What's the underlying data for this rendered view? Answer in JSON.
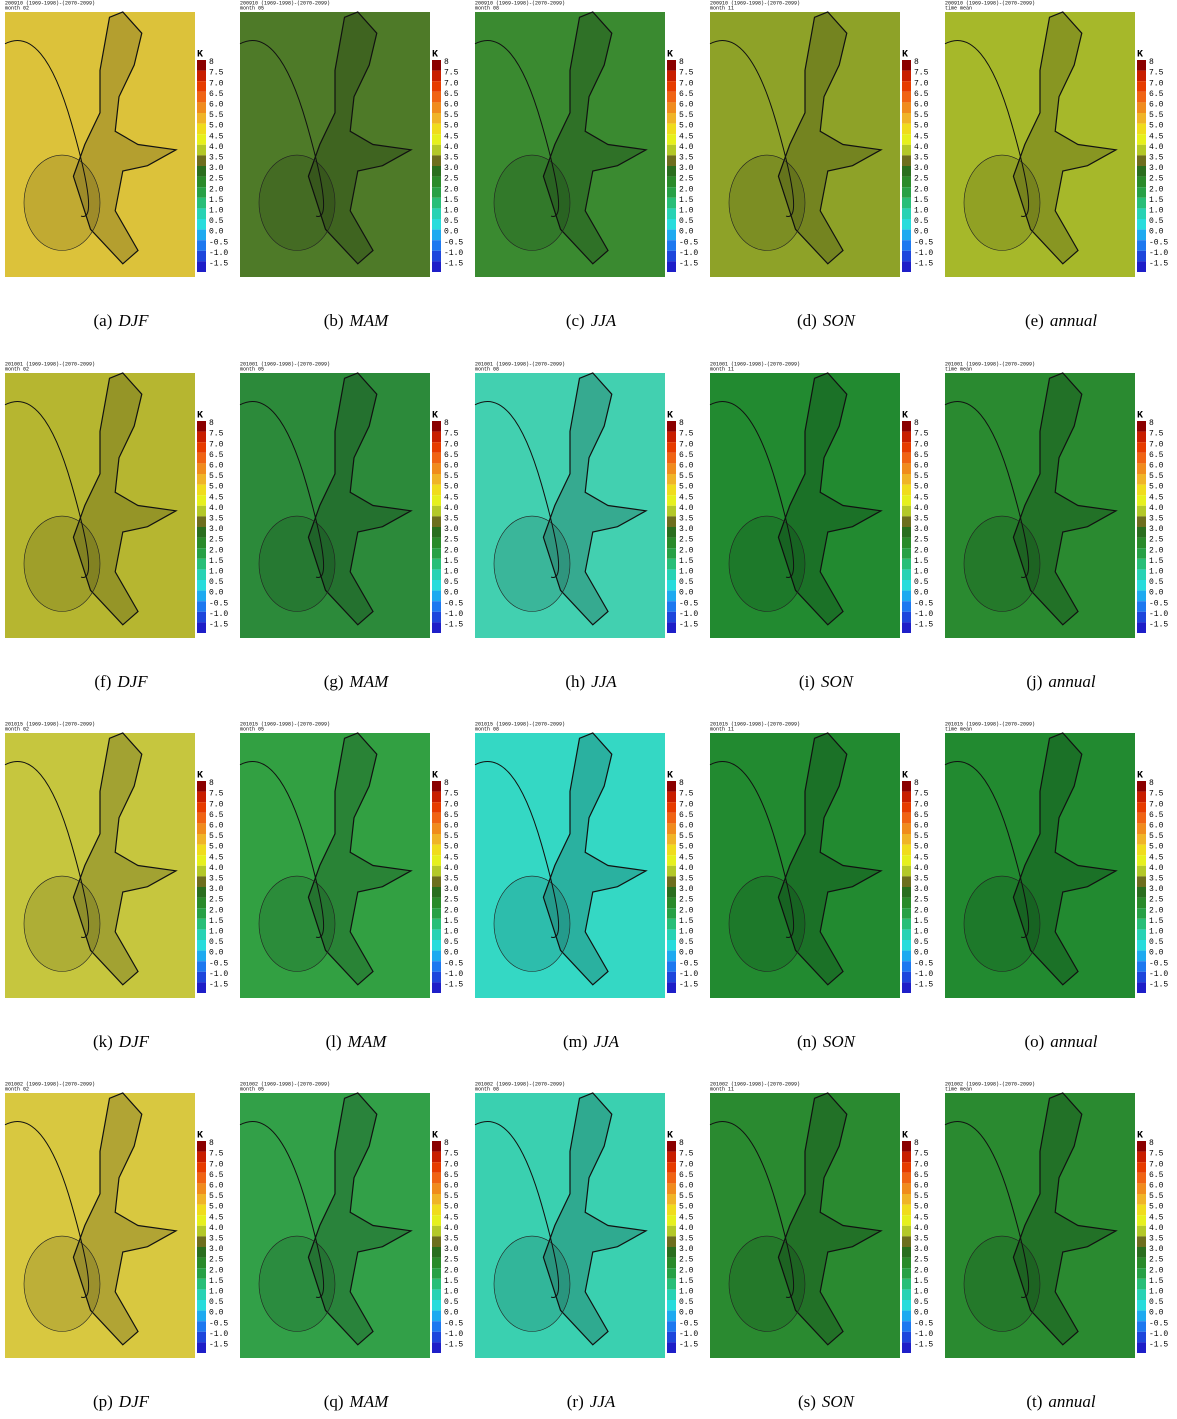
{
  "colorbar": {
    "unit": "K",
    "labels": [
      "8",
      "7.5",
      "7.0",
      "6.5",
      "6.0",
      "5.5",
      "5.0",
      "4.5",
      "4.0",
      "3.5",
      "3.0",
      "2.5",
      "2.0",
      "1.5",
      "1.0",
      "0.5",
      "0.0",
      "-0.5",
      "-1.0",
      "-1.5"
    ],
    "colors": [
      "#8b0000",
      "#c81e00",
      "#e63c00",
      "#f06414",
      "#f08c1e",
      "#f0b428",
      "#f0dc1e",
      "#e6f01e",
      "#b4c828",
      "#6e6e1e",
      "#2a6e1e",
      "#2a8a2a",
      "#28a046",
      "#28be78",
      "#28d2b4",
      "#28dcdc",
      "#1eaaf0",
      "#1e78f0",
      "#1e46dc",
      "#1e1ec8"
    ]
  },
  "panels": [
    {
      "header": "200910 (1969-1998)-(2070-2099)",
      "period": "month 02",
      "letter": "(a)",
      "season": "DJF",
      "fill": "#dcc23a"
    },
    {
      "header": "200910 (1969-1998)-(2070-2099)",
      "period": "month 05",
      "letter": "(b)",
      "season": "MAM",
      "fill": "#4e7a28"
    },
    {
      "header": "200910 (1969-1998)-(2070-2099)",
      "period": "month 08",
      "letter": "(c)",
      "season": "JJA",
      "fill": "#3a8a30"
    },
    {
      "header": "200910 (1969-1998)-(2070-2099)",
      "period": "month 11",
      "letter": "(d)",
      "season": "SON",
      "fill": "#8ea228"
    },
    {
      "header": "200910 (1969-1998)-(2070-2099)",
      "period": "time mean",
      "letter": "(e)",
      "season": "annual",
      "fill": "#a6b82a"
    },
    {
      "header": "201001 (1969-1998)-(2070-2099)",
      "period": "month 02",
      "letter": "(f)",
      "season": "DJF",
      "fill": "#b6b630"
    },
    {
      "header": "201001 (1969-1998)-(2070-2099)",
      "period": "month 05",
      "letter": "(g)",
      "season": "MAM",
      "fill": "#2c8a3a"
    },
    {
      "header": "201001 (1969-1998)-(2070-2099)",
      "period": "month 08",
      "letter": "(h)",
      "season": "JJA",
      "fill": "#42d0b0"
    },
    {
      "header": "201001 (1969-1998)-(2070-2099)",
      "period": "month 11",
      "letter": "(i)",
      "season": "SON",
      "fill": "#228a30"
    },
    {
      "header": "201001 (1969-1998)-(2070-2099)",
      "period": "time mean",
      "letter": "(j)",
      "season": "annual",
      "fill": "#2a8a30"
    },
    {
      "header": "201015 (1969-1998)-(2070-2099)",
      "period": "month 02",
      "letter": "(k)",
      "season": "DJF",
      "fill": "#c6c63e"
    },
    {
      "header": "201015 (1969-1998)-(2070-2099)",
      "period": "month 05",
      "letter": "(l)",
      "season": "MAM",
      "fill": "#32a042"
    },
    {
      "header": "201015 (1969-1998)-(2070-2099)",
      "period": "month 08",
      "letter": "(m)",
      "season": "JJA",
      "fill": "#34d8c4"
    },
    {
      "header": "201015 (1969-1998)-(2070-2099)",
      "period": "month 11",
      "letter": "(n)",
      "season": "SON",
      "fill": "#228a30"
    },
    {
      "header": "201015 (1969-1998)-(2070-2099)",
      "period": "time mean",
      "letter": "(o)",
      "season": "annual",
      "fill": "#228a30"
    },
    {
      "header": "201002 (1969-1998)-(2070-2099)",
      "period": "month 02",
      "letter": "(p)",
      "season": "DJF",
      "fill": "#d8c840"
    },
    {
      "header": "201002 (1969-1998)-(2070-2099)",
      "period": "month 05",
      "letter": "(q)",
      "season": "MAM",
      "fill": "#32a048"
    },
    {
      "header": "201002 (1969-1998)-(2070-2099)",
      "period": "month 08",
      "letter": "(r)",
      "season": "JJA",
      "fill": "#3ad0b0"
    },
    {
      "header": "201002 (1969-1998)-(2070-2099)",
      "period": "month 11",
      "letter": "(s)",
      "season": "SON",
      "fill": "#2a8a30"
    },
    {
      "header": "201002 (1969-1998)-(2070-2099)",
      "period": "time mean",
      "letter": "(t)",
      "season": "annual",
      "fill": "#2a8a30"
    }
  ]
}
